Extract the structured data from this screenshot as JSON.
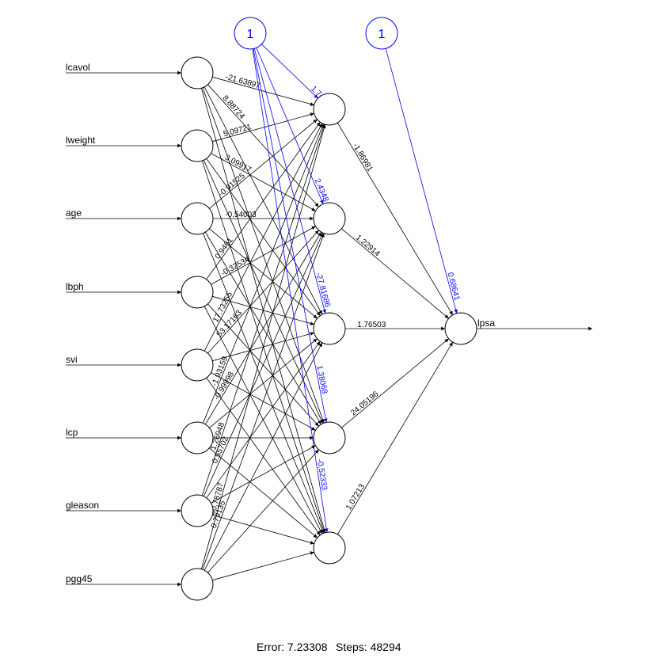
{
  "network": {
    "inputs": [
      "lcavol",
      "lweight",
      "age",
      "lbph",
      "svi",
      "lcp",
      "gleason",
      "pgg45"
    ],
    "output": "lpsa",
    "bias_labels": [
      "1",
      "1"
    ],
    "hidden_count": 5,
    "input_weights_shown": [
      [
        "-21.63897",
        "8.88724",
        "",
        "",
        ""
      ],
      [
        "5.09721",
        "3.09917",
        "",
        "",
        ""
      ],
      [
        "-0.91525",
        "-0.54003",
        "",
        "",
        ""
      ],
      [
        "0.9461",
        "-0.32534",
        "",
        "",
        ""
      ],
      [
        "17.73255",
        "53.17163",
        "",
        "",
        ""
      ],
      [
        "-1.93159",
        "-0.99998",
        "",
        "",
        ""
      ],
      [
        "1.26948",
        "0.55702",
        "",
        "",
        ""
      ],
      [
        "40.78787",
        "0.79135",
        "",
        "",
        ""
      ]
    ],
    "hidden_bias_weights": [
      "1.74683",
      "2.4348",
      "-27.81686",
      "1.38068",
      "-0.52333"
    ],
    "hidden_output_weights": [
      "-1.86981",
      "1.22914",
      "1.76503",
      "24.05196",
      "1.07213"
    ],
    "output_bias_weight": "0.68641"
  },
  "footer": {
    "error_text": "Error: 7.23308",
    "steps_text": "Steps: 48294"
  }
}
